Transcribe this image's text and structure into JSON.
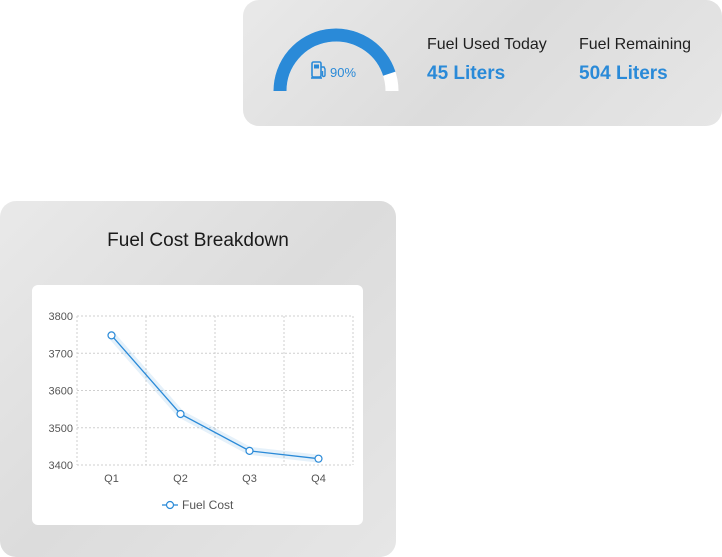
{
  "fuel_summary": {
    "gauge": {
      "percent": 90,
      "percent_label": "90%",
      "icon": "fuel-pump-icon",
      "color": "#2a8ad8",
      "track_color": "#ffffff"
    },
    "used_today": {
      "label": "Fuel Used Today",
      "value": "45 Liters"
    },
    "remaining": {
      "label": "Fuel Remaining",
      "value": "504 Liters"
    }
  },
  "cost_breakdown": {
    "title": "Fuel Cost Breakdown"
  },
  "chart_data": {
    "type": "line",
    "title": "Fuel Cost Breakdown",
    "categories": [
      "Q1",
      "Q2",
      "Q3",
      "Q4"
    ],
    "series": [
      {
        "name": "Fuel Cost",
        "values": [
          3748,
          3537,
          3438,
          3417
        ],
        "color": "#2a8ad8"
      }
    ],
    "ylim": [
      3400,
      3800
    ],
    "yticks": [
      3400,
      3500,
      3600,
      3700,
      3800
    ],
    "grid": true,
    "legend": "bottom",
    "xlabel": "",
    "ylabel": ""
  }
}
